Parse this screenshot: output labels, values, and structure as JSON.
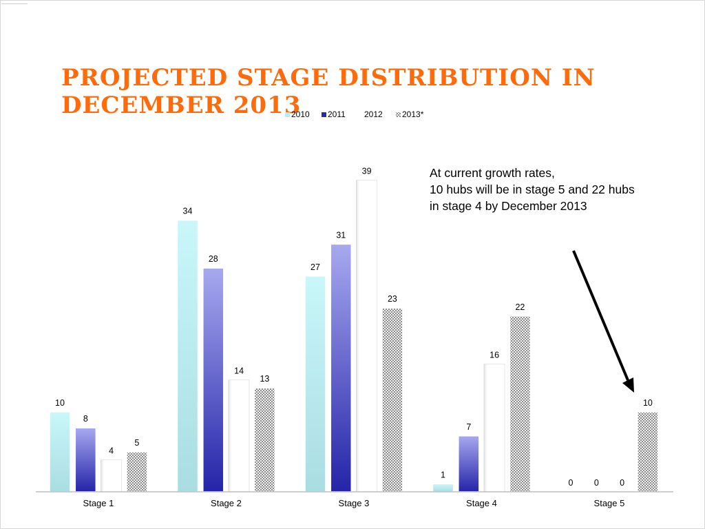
{
  "slide": {
    "title": "Projected Stage Distribution in December 2013",
    "annotation_lines": [
      "At current growth rates,",
      "10 hubs will be in stage 5 and 22 hubs",
      "in stage 4 by December 2013"
    ],
    "title_color": "#ff6a0b"
  },
  "chart_data": {
    "type": "bar",
    "categories": [
      "Stage 1",
      "Stage 2",
      "Stage 3",
      "Stage 4",
      "Stage 5"
    ],
    "series": [
      {
        "name": "2010",
        "values": [
          10,
          34,
          27,
          1,
          0
        ],
        "color": "#b9ecef"
      },
      {
        "name": "2011",
        "values": [
          8,
          28,
          31,
          7,
          0
        ],
        "color": "#5b5fc7"
      },
      {
        "name": "2012",
        "values": [
          4,
          14,
          39,
          16,
          0
        ],
        "color": "#ffffff"
      },
      {
        "name": "2013*",
        "values": [
          5,
          13,
          23,
          22,
          10
        ],
        "color": "#9a9a9a"
      }
    ],
    "legend_position": "top",
    "data_labels": true,
    "grid": false,
    "ylim": [
      0,
      40
    ]
  }
}
